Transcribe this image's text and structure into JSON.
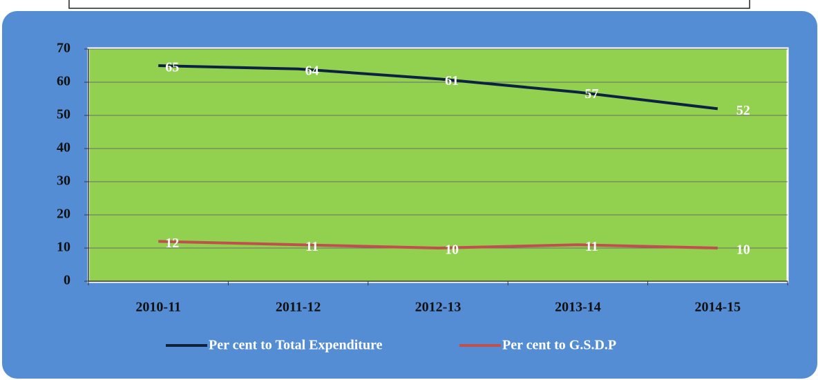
{
  "chart_data": {
    "type": "line",
    "categories": [
      "2010-11",
      "2011-12",
      "2012-13",
      "2013-14",
      "2014-15"
    ],
    "series": [
      {
        "name": "Per cent to Total Expenditure",
        "color": "#0d2240",
        "values": [
          65,
          64,
          61,
          57,
          52
        ]
      },
      {
        "name": "Per cent to G.S.D.P",
        "color": "#c0504d",
        "values": [
          12,
          11,
          10,
          11,
          10
        ]
      }
    ],
    "ylim": [
      0,
      70
    ],
    "yticks": [
      0,
      10,
      20,
      30,
      40,
      50,
      60,
      70
    ],
    "grid": true,
    "legend": "bottom"
  }
}
